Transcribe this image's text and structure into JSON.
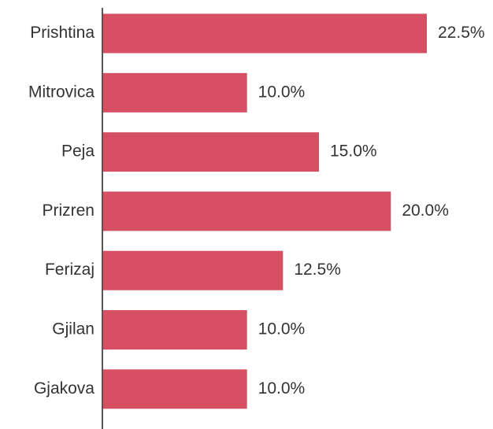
{
  "chart_data": {
    "type": "bar",
    "orientation": "horizontal",
    "categories": [
      "Prishtina",
      "Mitrovica",
      "Peja",
      "Prizren",
      "Ferizaj",
      "Gjilan",
      "Gjakova"
    ],
    "values": [
      22.5,
      10.0,
      15.0,
      20.0,
      12.5,
      10.0,
      10.0
    ],
    "value_labels": [
      "22.5%",
      "10.0%",
      "15.0%",
      "20.0%",
      "12.5%",
      "10.0%",
      "10.0%"
    ],
    "color": "#d64f63"
  }
}
